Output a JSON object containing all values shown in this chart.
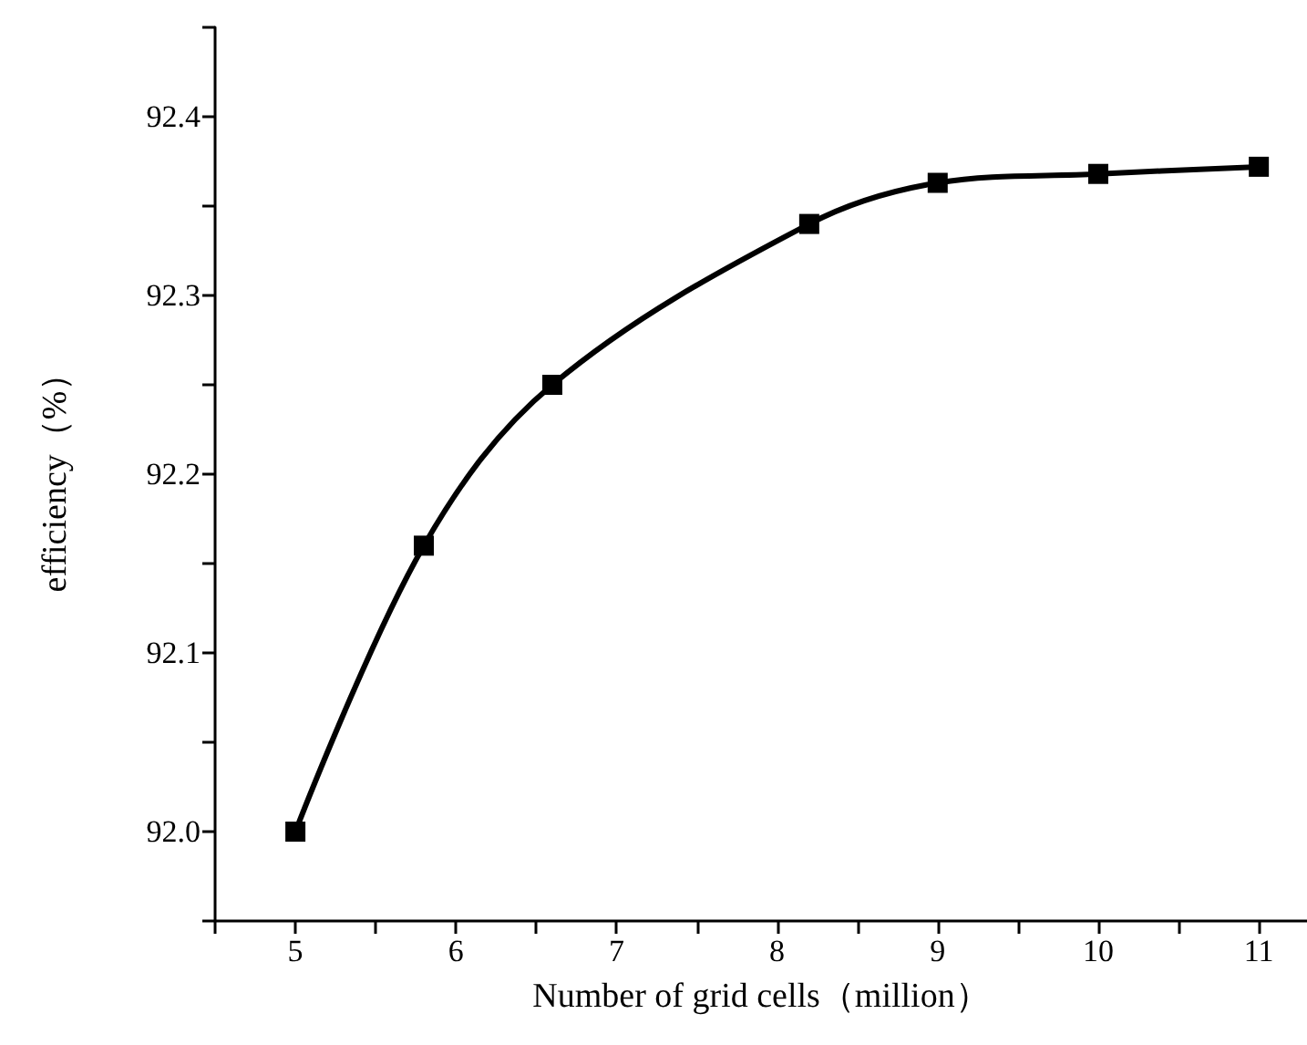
{
  "chart_data": {
    "type": "line",
    "xlabel": "Number of grid cells（million）",
    "ylabel": "efficiency（%）",
    "x": [
      5,
      5.8,
      6.6,
      8.2,
      9,
      10,
      11
    ],
    "series": [
      {
        "color": "#000000",
        "values": [
          92.0,
          92.16,
          92.25,
          92.34,
          92.363,
          92.368,
          92.372
        ]
      }
    ],
    "xlim": [
      4.5,
      11.3
    ],
    "xticks": [
      5,
      6,
      7,
      8,
      9,
      10,
      11
    ],
    "ylim": [
      91.95,
      92.45
    ],
    "yticks": [
      {
        "value": 92.0,
        "label": "92.0"
      },
      {
        "value": 92.1,
        "label": "92.1"
      },
      {
        "value": 92.2,
        "label": "92.2"
      },
      {
        "value": 92.3,
        "label": "92.3"
      },
      {
        "value": 92.4,
        "label": "92.4"
      }
    ],
    "grid": false,
    "marker": "square",
    "line_style": "solid"
  }
}
